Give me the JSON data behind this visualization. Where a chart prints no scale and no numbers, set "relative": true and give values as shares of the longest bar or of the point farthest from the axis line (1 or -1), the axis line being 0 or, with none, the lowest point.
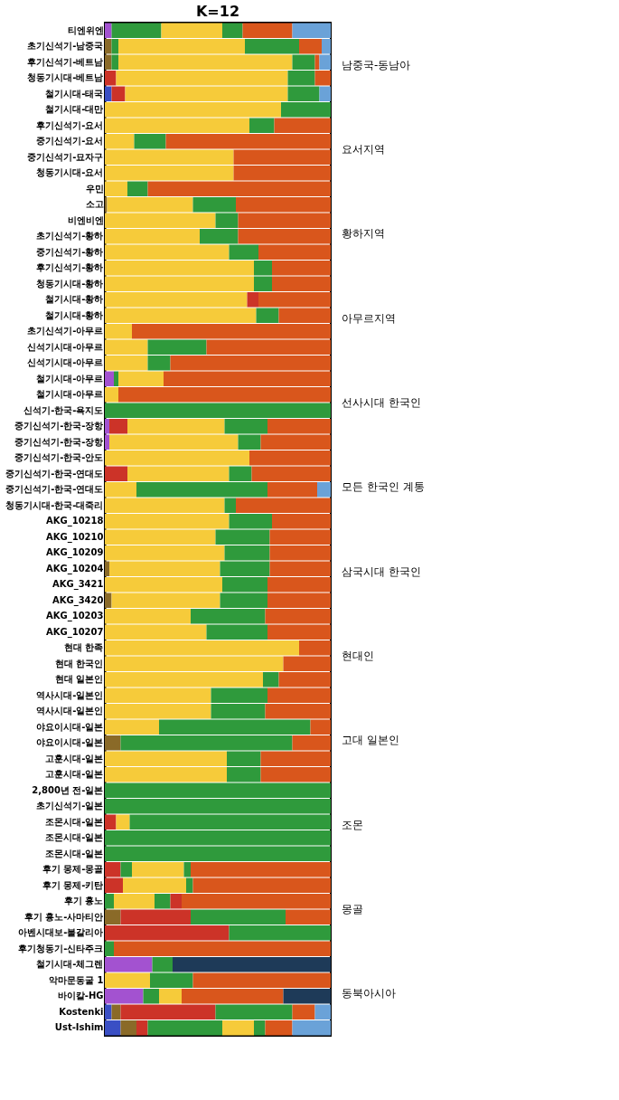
{
  "chart_data": {
    "type": "bar",
    "orientation": "horizontal",
    "stacked": true,
    "relative": true,
    "tick_labels": "y",
    "title": "K=12",
    "categories": [
      "티엔위엔",
      "초기신석기-남중국",
      "후기신석기-베트남",
      "청동기시대-베트남",
      "철기시대-태국",
      "철기시대-대만",
      "후기신석기-요서",
      "중기신석기-요서",
      "중기신석기-묘자구",
      "청동기시대-요서",
      "우민",
      "소고",
      "비엔비엔",
      "초기신석기-황하",
      "중기신석기-황하",
      "후기신석기-황하",
      "청동기시대-황하",
      "철기시대-황하",
      "철기시대-황하",
      "초기신석기-아무르",
      "신석기시대-아무르",
      "신석기시대-아무르",
      "철기시대-아무르",
      "철기시대-아무르",
      "신석기-한국-욕지도",
      "중기신석기-한국-장항",
      "중기신석기-한국-장항",
      "중기신석기-한국-안도",
      "중기신석기-한국-연대도",
      "중기신석기-한국-연대도",
      "청동기시대-한국-대죽리",
      "AKG_10218",
      "AKG_10210",
      "AKG_10209",
      "AKG_10204",
      "AKG_3421",
      "AKG_3420",
      "AKG_10203",
      "AKG_10207",
      "현대 한족",
      "현대 한국인",
      "현대 일본인",
      "역사시대-일본인",
      "역사시대-일본인",
      "야요이시대-일본",
      "야요이시대-일본",
      "고훈시대-일본",
      "고훈시대-일본",
      "2,800년 전-일본",
      "초기신석기-일본",
      "조몬시대-일본",
      "조몬시대-일본",
      "조몬시대-일본",
      "후기 몽제-몽골",
      "후기 몽제-키탄",
      "후기 흉노",
      "후기 흉노-사마티안",
      "아벤시대보-불갈리아",
      "후기청동기-신타주크",
      "철기시대-체그렌",
      "악마문동굴 1",
      "바이칼-HG",
      "Kostenki",
      "Ust-Ishim"
    ],
    "series": [
      {
        "color": "#3a4fc4",
        "values": [
          null,
          null,
          null,
          null,
          0.03,
          null,
          null,
          null,
          null,
          null,
          null,
          null,
          null,
          null,
          null,
          null,
          null,
          null,
          null,
          null,
          null,
          null,
          null,
          null,
          null,
          null,
          null,
          null,
          null,
          null,
          null,
          null,
          null,
          null,
          null,
          null,
          null,
          null,
          null,
          null,
          null,
          null,
          null,
          null,
          null,
          null,
          null,
          null,
          null,
          null,
          null,
          null,
          null,
          null,
          null,
          null,
          null,
          null,
          null,
          null,
          null,
          null,
          0.03,
          0.07
        ]
      },
      {
        "color": "#a352d0",
        "values": [
          0.03,
          null,
          null,
          null,
          null,
          null,
          null,
          null,
          null,
          null,
          null,
          null,
          null,
          null,
          null,
          null,
          null,
          null,
          null,
          null,
          null,
          null,
          0.04,
          null,
          null,
          0.02,
          0.02,
          null,
          null,
          null,
          null,
          null,
          null,
          null,
          null,
          null,
          null,
          null,
          null,
          null,
          null,
          null,
          null,
          null,
          null,
          null,
          null,
          null,
          null,
          null,
          null,
          null,
          null,
          null,
          null,
          null,
          null,
          null,
          null,
          0.21,
          null,
          0.17,
          null,
          null
        ]
      },
      {
        "color": "#8a6a28",
        "values": [
          null,
          0.03,
          0.03,
          null,
          null,
          null,
          null,
          null,
          null,
          null,
          null,
          0.01,
          null,
          null,
          null,
          null,
          null,
          null,
          null,
          null,
          null,
          null,
          null,
          null,
          null,
          null,
          null,
          null,
          null,
          null,
          null,
          null,
          null,
          null,
          0.02,
          null,
          0.03,
          null,
          null,
          null,
          null,
          null,
          null,
          null,
          null,
          0.07,
          null,
          null,
          null,
          null,
          null,
          null,
          null,
          null,
          null,
          null,
          0.07,
          null,
          null,
          null,
          null,
          null,
          0.04,
          0.07
        ]
      },
      {
        "color": "#cc3328",
        "values": [
          null,
          null,
          null,
          0.05,
          0.06,
          null,
          null,
          null,
          null,
          null,
          null,
          null,
          null,
          null,
          null,
          null,
          null,
          null,
          null,
          null,
          null,
          null,
          null,
          null,
          null,
          0.08,
          null,
          null,
          0.1,
          null,
          null,
          null,
          null,
          null,
          null,
          null,
          null,
          null,
          null,
          null,
          null,
          null,
          null,
          null,
          null,
          null,
          null,
          null,
          null,
          null,
          0.05,
          null,
          null,
          0.07,
          0.08,
          null,
          0.31,
          0.55,
          null,
          null,
          null,
          null,
          0.42,
          0.05
        ]
      },
      {
        "color": "#2f9a3c",
        "values": [
          0.22,
          0.03,
          0.03,
          null,
          null,
          null,
          null,
          null,
          null,
          null,
          null,
          null,
          null,
          null,
          null,
          null,
          null,
          null,
          null,
          null,
          null,
          null,
          0.02,
          null,
          null,
          null,
          null,
          null,
          null,
          null,
          null,
          null,
          null,
          null,
          null,
          null,
          null,
          null,
          null,
          null,
          null,
          null,
          null,
          null,
          null,
          null,
          null,
          null,
          null,
          null,
          null,
          null,
          null,
          0.05,
          null,
          0.04,
          null,
          null,
          0.04,
          0.09,
          null,
          0.07,
          0.34,
          0.33
        ]
      },
      {
        "color": "#f6cb3a",
        "values": [
          0.27,
          0.56,
          0.77,
          0.76,
          0.72,
          0.78,
          0.64,
          0.13,
          0.57,
          0.57,
          0.1,
          0.38,
          0.49,
          0.42,
          0.55,
          0.66,
          0.66,
          0.63,
          0.67,
          0.12,
          0.19,
          0.19,
          0.2,
          0.06,
          null,
          0.43,
          0.57,
          0.64,
          0.45,
          0.14,
          0.53,
          0.55,
          0.49,
          0.53,
          0.49,
          0.52,
          0.48,
          0.38,
          0.45,
          0.86,
          0.79,
          0.7,
          0.47,
          0.47,
          0.24,
          null,
          0.54,
          0.54,
          null,
          null,
          0.06,
          null,
          null,
          0.23,
          0.28,
          0.18,
          null,
          null,
          null,
          null,
          0.2,
          0.1,
          null,
          0.14
        ]
      },
      {
        "color": "#2f9a3c",
        "values": [
          0.09,
          0.24,
          0.1,
          0.12,
          0.14,
          0.22,
          0.11,
          0.14,
          null,
          null,
          0.09,
          0.19,
          0.1,
          0.17,
          0.13,
          0.08,
          0.08,
          null,
          0.1,
          null,
          0.26,
          0.1,
          null,
          null,
          1,
          0.19,
          0.1,
          null,
          0.1,
          0.58,
          0.05,
          0.19,
          0.24,
          0.2,
          0.22,
          0.2,
          0.21,
          0.33,
          0.27,
          null,
          null,
          0.07,
          0.25,
          0.24,
          0.67,
          0.76,
          0.15,
          0.15,
          1,
          1,
          0.89,
          1,
          1,
          0.03,
          0.03,
          0.07,
          0.42,
          0.45,
          null,
          null,
          0.19,
          null,
          null,
          0.05
        ]
      },
      {
        "color": "#cc3328",
        "values": [
          null,
          null,
          null,
          null,
          null,
          null,
          null,
          null,
          null,
          null,
          null,
          null,
          null,
          null,
          null,
          null,
          null,
          0.05,
          null,
          null,
          null,
          null,
          null,
          null,
          null,
          null,
          null,
          null,
          null,
          null,
          null,
          null,
          null,
          null,
          null,
          null,
          null,
          null,
          null,
          null,
          null,
          null,
          null,
          null,
          null,
          null,
          null,
          null,
          null,
          null,
          null,
          null,
          null,
          null,
          null,
          0.05,
          null,
          null,
          null,
          null,
          null,
          null,
          null,
          null
        ]
      },
      {
        "color": "#d9561c",
        "values": [
          0.22,
          0.1,
          0.02,
          0.07,
          null,
          null,
          0.25,
          0.73,
          0.43,
          0.43,
          0.81,
          0.42,
          0.41,
          0.41,
          0.32,
          0.26,
          0.26,
          0.32,
          0.23,
          0.88,
          0.55,
          0.71,
          0.74,
          0.94,
          null,
          0.28,
          0.31,
          0.36,
          0.35,
          0.22,
          0.42,
          0.26,
          0.27,
          0.27,
          0.27,
          0.28,
          0.28,
          0.29,
          0.28,
          0.14,
          0.21,
          0.23,
          0.28,
          0.29,
          0.09,
          0.17,
          0.31,
          0.31,
          null,
          null,
          null,
          null,
          null,
          0.62,
          0.61,
          0.66,
          0.2,
          null,
          0.96,
          null,
          0.61,
          0.45,
          0.1,
          0.12
        ]
      },
      {
        "color": "#6aa2d8",
        "values": [
          0.17,
          0.04,
          0.05,
          null,
          0.05,
          null,
          null,
          null,
          null,
          null,
          null,
          null,
          null,
          null,
          null,
          null,
          null,
          null,
          null,
          null,
          null,
          null,
          null,
          null,
          null,
          null,
          null,
          null,
          null,
          0.06,
          null,
          null,
          null,
          null,
          null,
          null,
          null,
          null,
          null,
          null,
          null,
          null,
          null,
          null,
          null,
          null,
          null,
          null,
          null,
          null,
          null,
          null,
          null,
          null,
          null,
          null,
          null,
          null,
          null,
          null,
          null,
          null,
          0.07,
          0.17
        ]
      },
      {
        "color": "#1e3a58",
        "values": [
          null,
          null,
          null,
          null,
          null,
          null,
          null,
          null,
          null,
          null,
          null,
          null,
          null,
          null,
          null,
          null,
          null,
          null,
          null,
          null,
          null,
          null,
          null,
          null,
          null,
          null,
          null,
          null,
          null,
          null,
          null,
          null,
          null,
          null,
          null,
          null,
          null,
          null,
          null,
          null,
          null,
          null,
          null,
          null,
          null,
          null,
          null,
          null,
          null,
          null,
          null,
          null,
          null,
          null,
          null,
          null,
          null,
          null,
          null,
          0.7,
          null,
          0.21,
          null,
          null
        ]
      }
    ],
    "annotations": [
      "남중국-동남아",
      "요서지역",
      "황하지역",
      "아무르지역",
      "선사시대 한국인",
      "모든 한국인 계통",
      "삼국시대 한국인",
      "현대인",
      "고대 일본인",
      "조몬",
      "몽골",
      "동북아시아"
    ]
  }
}
